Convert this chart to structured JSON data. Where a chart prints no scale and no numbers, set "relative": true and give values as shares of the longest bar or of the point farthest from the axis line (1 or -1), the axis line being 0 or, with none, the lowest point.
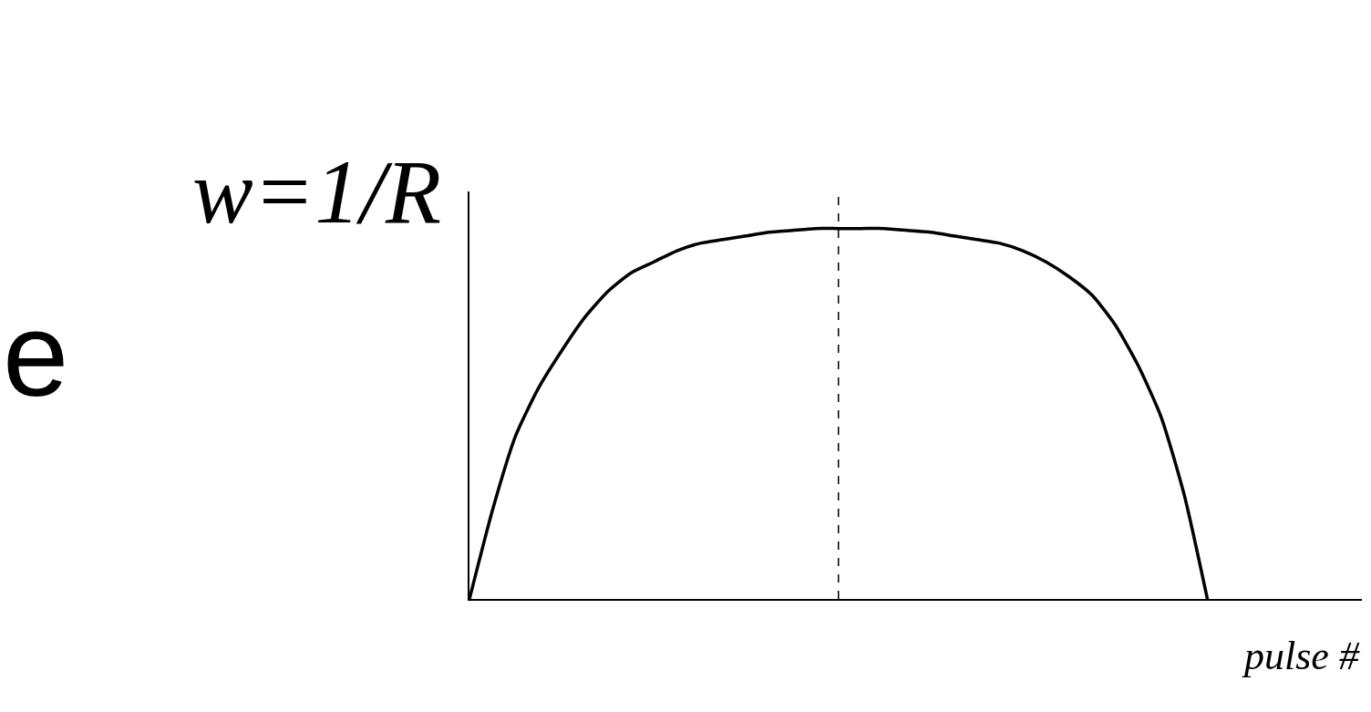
{
  "chart_data": {
    "type": "line",
    "relative": true,
    "xlabel": "pulse #",
    "ylabel": "w=1/R",
    "categories": [
      null,
      null,
      null,
      null,
      null,
      null,
      null,
      null,
      null,
      null,
      null,
      null,
      null,
      null,
      null,
      null,
      null,
      null,
      null,
      null,
      null,
      null,
      null,
      null,
      null,
      null,
      null,
      null,
      null,
      null,
      null,
      null,
      null,
      null,
      null,
      null,
      null,
      null,
      null
    ],
    "series": [
      {
        "color": "#000000",
        "values": [
          0,
          0.24,
          0.44,
          0.57,
          0.67,
          0.76,
          0.83,
          0.88,
          0.91,
          0.94,
          0.96,
          0.97,
          0.98,
          0.99,
          0.995,
          1,
          1,
          1,
          1,
          0.995,
          0.99,
          0.98,
          0.97,
          0.96,
          0.94,
          0.91,
          0.87,
          0.82,
          0.74,
          0.63,
          0.49,
          0.28,
          0,
          null,
          null,
          null,
          null,
          null,
          null
        ]
      }
    ],
    "annotations": [
      "e"
    ],
    "line_style": "solid"
  }
}
